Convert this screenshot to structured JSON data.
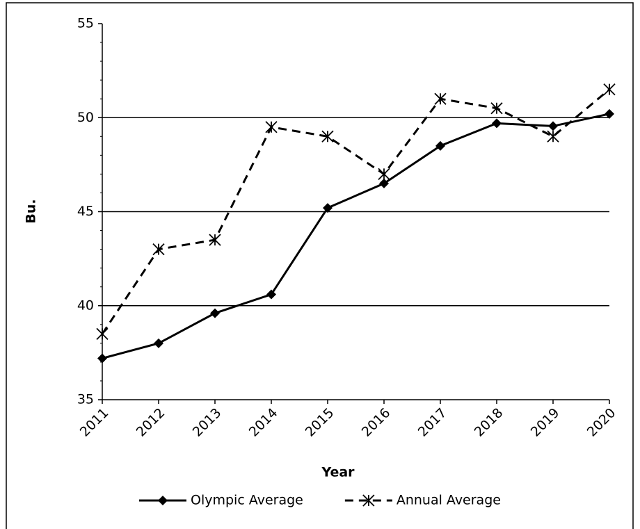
{
  "chart_data": {
    "type": "line",
    "x_label": "Year",
    "y_label": "Bu.",
    "categories": [
      "2011",
      "2012",
      "2013",
      "2014",
      "2015",
      "2016",
      "2017",
      "2018",
      "2019",
      "2020"
    ],
    "series": [
      {
        "name": "Olympic Average",
        "color": "#000000",
        "dash": "solid",
        "marker": "diamond",
        "values": [
          37.2,
          38.0,
          39.6,
          40.6,
          45.2,
          46.5,
          48.5,
          49.7,
          49.55,
          50.2
        ]
      },
      {
        "name": "Annual Average",
        "color": "#000000",
        "dash": "dashed",
        "marker": "asterisk",
        "values": [
          38.5,
          43.0,
          43.5,
          49.5,
          49.0,
          47.0,
          51.0,
          50.5,
          49.0,
          51.5
        ]
      }
    ],
    "ylim": [
      35,
      55
    ],
    "yticks": [
      35,
      40,
      45,
      50,
      55
    ],
    "grid": true,
    "legend": "bottom"
  }
}
